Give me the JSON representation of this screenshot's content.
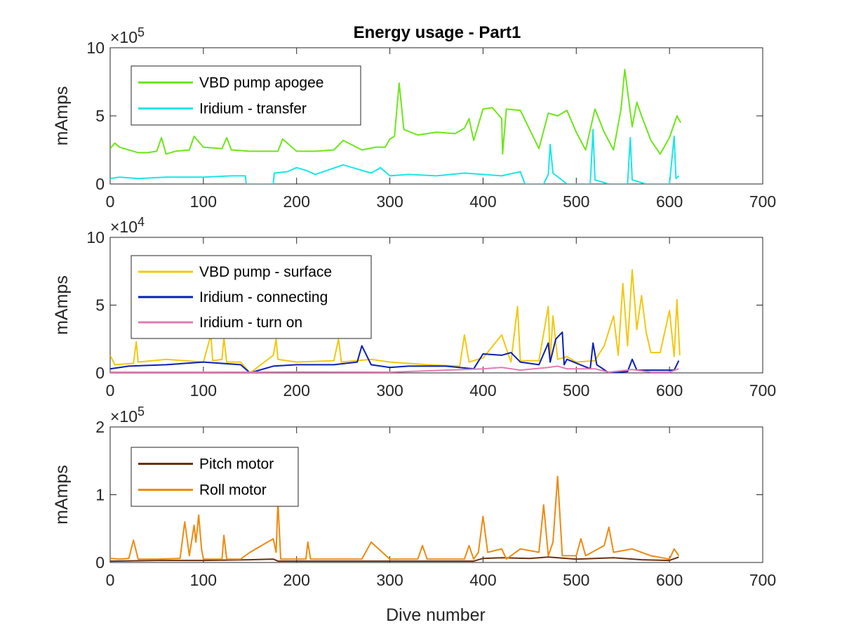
{
  "title": "Energy usage - Part1",
  "xlabel": "Dive number",
  "chart_data": [
    {
      "type": "line",
      "title": "Energy usage - Part1",
      "xlabel": "",
      "ylabel": "mAmps",
      "exponent": "×10",
      "exponent_power": "5",
      "xlim": [
        0,
        700
      ],
      "ylim": [
        0,
        10
      ],
      "xticks": [
        "0",
        "100",
        "200",
        "300",
        "400",
        "500",
        "600",
        "700"
      ],
      "yticks": [
        "0",
        "5",
        "10"
      ],
      "legend_position": "top-left",
      "series": [
        {
          "name": "VBD pump apogee",
          "color": "#6ee61a",
          "x": [
            0,
            5,
            10,
            20,
            30,
            40,
            50,
            55,
            60,
            70,
            85,
            90,
            100,
            120,
            125,
            130,
            150,
            180,
            185,
            200,
            220,
            240,
            250,
            270,
            285,
            295,
            300,
            305,
            310,
            315,
            330,
            350,
            370,
            380,
            385,
            390,
            400,
            410,
            420,
            421,
            425,
            440,
            460,
            470,
            480,
            490,
            500,
            510,
            520,
            530,
            540,
            548,
            552,
            560,
            565,
            570,
            580,
            590,
            600,
            608,
            612
          ],
          "y": [
            2.6,
            3.0,
            2.7,
            2.5,
            2.3,
            2.3,
            2.4,
            3.4,
            2.2,
            2.4,
            2.5,
            3.5,
            2.7,
            2.6,
            3.4,
            2.5,
            2.4,
            2.4,
            3.3,
            2.4,
            2.4,
            2.5,
            3.2,
            2.5,
            2.7,
            2.7,
            3.3,
            3.5,
            7.4,
            4.0,
            3.6,
            3.8,
            3.7,
            4.1,
            4.8,
            3.2,
            5.5,
            5.6,
            4.8,
            2.2,
            5.5,
            5.4,
            2.6,
            5.2,
            5.0,
            5.4,
            3.8,
            2.5,
            5.5,
            3.8,
            2.5,
            5.5,
            8.4,
            4.2,
            6.0,
            5.0,
            3.2,
            2.2,
            3.4,
            5.0,
            4.5
          ]
        },
        {
          "name": "Iridium - transfer",
          "color": "#1ae6e6",
          "x": [
            0,
            10,
            30,
            60,
            100,
            130,
            145,
            146,
            175,
            176,
            190,
            200,
            210,
            220,
            250,
            280,
            290,
            300,
            320,
            350,
            380,
            400,
            420,
            440,
            445,
            465,
            470,
            472,
            475,
            490,
            515,
            518,
            520,
            535,
            555,
            558,
            560,
            575,
            600,
            605,
            607,
            610
          ],
          "y": [
            0.4,
            0.5,
            0.4,
            0.5,
            0.5,
            0.6,
            0.6,
            0.0,
            0.0,
            0.8,
            0.9,
            1.2,
            1.0,
            0.7,
            1.4,
            0.8,
            1.2,
            0.6,
            0.7,
            0.6,
            0.8,
            0.7,
            0.6,
            0.9,
            0.0,
            0.0,
            0.7,
            2.9,
            0.8,
            0.0,
            0.0,
            4.0,
            0.3,
            0.0,
            0.0,
            3.4,
            0.3,
            0.0,
            0.0,
            3.5,
            0.4,
            0.6
          ]
        }
      ]
    },
    {
      "type": "line",
      "xlabel": "",
      "ylabel": "mAmps",
      "exponent": "×10",
      "exponent_power": "4",
      "xlim": [
        0,
        700
      ],
      "ylim": [
        0,
        10
      ],
      "xticks": [
        "0",
        "100",
        "200",
        "300",
        "400",
        "500",
        "600",
        "700"
      ],
      "yticks": [
        "0",
        "5",
        "10"
      ],
      "legend_position": "top-left",
      "series": [
        {
          "name": "VBD pump - surface",
          "color": "#f2c80f",
          "x": [
            0,
            5,
            25,
            28,
            30,
            60,
            100,
            108,
            110,
            120,
            122,
            125,
            140,
            150,
            175,
            178,
            180,
            200,
            240,
            245,
            248,
            280,
            300,
            340,
            375,
            380,
            385,
            390,
            400,
            420,
            430,
            437,
            440,
            460,
            470,
            472,
            475,
            480,
            490,
            500,
            520,
            530,
            540,
            545,
            550,
            555,
            560,
            565,
            570,
            575,
            580,
            590,
            600,
            605,
            608,
            611
          ],
          "y": [
            1.3,
            0.6,
            0.7,
            2.3,
            0.8,
            1.0,
            0.8,
            2.8,
            0.9,
            1.0,
            2.6,
            0.8,
            0.8,
            0.0,
            1.3,
            2.5,
            1.0,
            0.8,
            0.9,
            2.5,
            0.8,
            1.0,
            0.8,
            0.6,
            0.5,
            2.8,
            0.8,
            0.9,
            1.1,
            2.8,
            0.8,
            4.9,
            0.9,
            0.9,
            4.9,
            0.9,
            4.2,
            1.0,
            1.2,
            0.8,
            0.9,
            2.0,
            4.2,
            1.3,
            6.6,
            2.0,
            7.6,
            3.2,
            5.7,
            3.0,
            1.5,
            1.5,
            4.6,
            1.2,
            5.4,
            1.3
          ]
        },
        {
          "name": "Iridium - connecting",
          "color": "#0a1fb4",
          "x": [
            0,
            20,
            60,
            100,
            140,
            150,
            175,
            200,
            240,
            265,
            270,
            280,
            300,
            320,
            360,
            390,
            400,
            420,
            430,
            440,
            460,
            470,
            472,
            478,
            485,
            487,
            490,
            515,
            518,
            522,
            535,
            555,
            560,
            565,
            605,
            610
          ],
          "y": [
            0.3,
            0.5,
            0.6,
            0.8,
            0.6,
            0.0,
            0.5,
            0.6,
            0.6,
            0.8,
            2.0,
            0.6,
            0.4,
            0.5,
            0.5,
            0.3,
            1.4,
            1.3,
            1.5,
            0.8,
            0.6,
            2.2,
            0.8,
            2.5,
            3.0,
            0.6,
            1.0,
            0.3,
            2.2,
            0.6,
            0.0,
            0.1,
            1.0,
            0.2,
            0.2,
            0.9
          ]
        },
        {
          "name": "Iridium - turn on",
          "color": "#e37ab4",
          "x": [
            0,
            100,
            200,
            300,
            400,
            420,
            440,
            470,
            480,
            490,
            520,
            535,
            560,
            580,
            600,
            610
          ],
          "y": [
            0.05,
            0.05,
            0.06,
            0.05,
            0.3,
            0.4,
            0.2,
            0.4,
            0.5,
            0.3,
            0.3,
            0.05,
            0.25,
            0.05,
            0.05,
            0.3
          ]
        }
      ]
    },
    {
      "type": "line",
      "xlabel": "Dive number",
      "ylabel": "mAmps",
      "exponent": "×10",
      "exponent_power": "5",
      "xlim": [
        0,
        700
      ],
      "ylim": [
        0,
        2
      ],
      "xticks": [
        "0",
        "100",
        "200",
        "300",
        "400",
        "500",
        "600",
        "700"
      ],
      "yticks": [
        "0",
        "1",
        "2"
      ],
      "legend_position": "top-left",
      "series": [
        {
          "name": "Pitch motor",
          "color": "#6b3010",
          "x": [
            0,
            50,
            100,
            150,
            175,
            180,
            200,
            300,
            390,
            400,
            420,
            450,
            470,
            480,
            500,
            540,
            570,
            600,
            610
          ],
          "y": [
            0.02,
            0.03,
            0.03,
            0.04,
            0.05,
            0.02,
            0.02,
            0.02,
            0.02,
            0.06,
            0.07,
            0.06,
            0.08,
            0.07,
            0.05,
            0.07,
            0.04,
            0.03,
            0.08
          ]
        },
        {
          "name": "Roll motor",
          "color": "#ee8a10",
          "x": [
            0,
            10,
            20,
            25,
            30,
            50,
            75,
            80,
            85,
            90,
            92,
            95,
            98,
            100,
            110,
            120,
            122,
            125,
            140,
            150,
            175,
            178,
            180,
            183,
            200,
            210,
            212,
            215,
            240,
            270,
            280,
            300,
            330,
            335,
            340,
            380,
            385,
            390,
            395,
            400,
            405,
            420,
            425,
            440,
            460,
            465,
            470,
            475,
            480,
            485,
            500,
            505,
            510,
            530,
            535,
            540,
            560,
            580,
            600,
            605,
            610
          ],
          "y": [
            0.06,
            0.05,
            0.06,
            0.33,
            0.05,
            0.05,
            0.06,
            0.6,
            0.1,
            0.55,
            0.3,
            0.7,
            0.2,
            0.05,
            0.05,
            0.05,
            0.4,
            0.05,
            0.05,
            0.15,
            0.35,
            0.15,
            0.9,
            0.05,
            0.05,
            0.05,
            0.3,
            0.05,
            0.05,
            0.05,
            0.3,
            0.05,
            0.05,
            0.25,
            0.05,
            0.05,
            0.25,
            0.05,
            0.15,
            0.68,
            0.15,
            0.2,
            0.05,
            0.2,
            0.15,
            0.85,
            0.1,
            0.3,
            1.27,
            0.1,
            0.1,
            0.35,
            0.1,
            0.25,
            0.52,
            0.15,
            0.2,
            0.1,
            0.05,
            0.2,
            0.1
          ]
        }
      ]
    }
  ]
}
